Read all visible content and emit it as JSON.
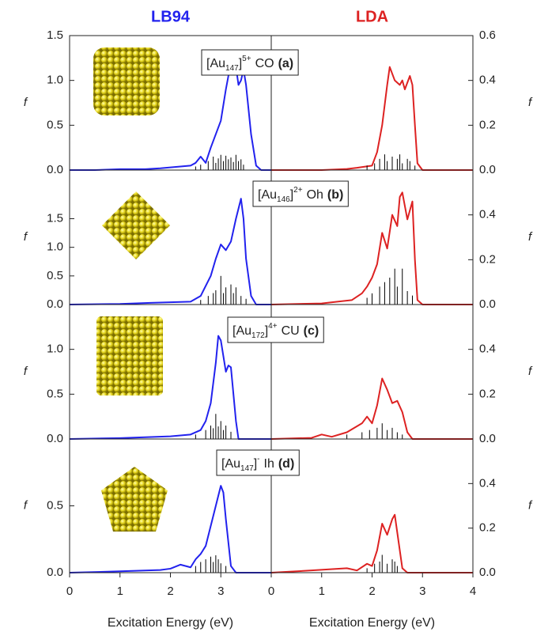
{
  "chart_data": [
    {
      "type": "line",
      "title": "LB94",
      "title_color": "#2222ee",
      "ylabel": "f",
      "xlim": [
        0,
        4
      ],
      "xticks": [],
      "ylim": [
        0,
        1.5
      ],
      "yticks": [
        {
          "value": 0,
          "label": "0.0"
        },
        0.5,
        {
          "value": 1,
          "label": "1.0"
        },
        1.5
      ],
      "annotation": {
        "prefix": "[Au",
        "sub": "147",
        "suffix": "]",
        "sup": "5+",
        "name": "CO",
        "tag": "(a)"
      },
      "series": [
        {
          "color": "#2222ee",
          "x": [
            0,
            0.5,
            1.0,
            1.5,
            1.8,
            2.0,
            2.2,
            2.4,
            2.5,
            2.6,
            2.7,
            2.8,
            2.9,
            3.0,
            3.1,
            3.2,
            3.3,
            3.35,
            3.4,
            3.45,
            3.5,
            3.6,
            3.7,
            3.8,
            4.0
          ],
          "values": [
            0,
            0,
            0.01,
            0.01,
            0.02,
            0.03,
            0.04,
            0.05,
            0.08,
            0.15,
            0.08,
            0.25,
            0.4,
            0.55,
            0.9,
            1.2,
            1.15,
            0.95,
            1.0,
            1.12,
            0.95,
            0.4,
            0.05,
            0,
            0
          ]
        },
        {
          "color": "#000000",
          "style": "stick",
          "x": [
            2.5,
            2.6,
            2.75,
            2.85,
            2.9,
            2.95,
            3.0,
            3.05,
            3.1,
            3.15,
            3.2,
            3.25,
            3.3,
            3.35,
            3.4,
            3.45
          ],
          "values": [
            0.04,
            0.06,
            0.1,
            0.15,
            0.08,
            0.13,
            0.17,
            0.1,
            0.16,
            0.12,
            0.14,
            0.09,
            0.17,
            0.1,
            0.12,
            0.06
          ]
        }
      ]
    },
    {
      "type": "line",
      "title": "LDA",
      "title_color": "#dd2222",
      "ylabel": "f",
      "xlim": [
        0,
        4
      ],
      "xticks": [],
      "ylim": [
        0,
        0.6
      ],
      "yticks": [
        {
          "value": 0,
          "label": "0.0"
        },
        0.2,
        0.4,
        0.6
      ],
      "series": [
        {
          "color": "#dd2222",
          "x": [
            0,
            1.0,
            1.5,
            1.7,
            2.0,
            2.1,
            2.2,
            2.3,
            2.35,
            2.45,
            2.55,
            2.6,
            2.65,
            2.75,
            2.8,
            2.85,
            2.9,
            3.0,
            4.0
          ],
          "values": [
            0,
            0,
            0.005,
            0.01,
            0.02,
            0.08,
            0.2,
            0.38,
            0.46,
            0.4,
            0.38,
            0.4,
            0.36,
            0.42,
            0.38,
            0.2,
            0.03,
            0,
            0
          ]
        },
        {
          "color": "#000000",
          "style": "stick",
          "x": [
            1.9,
            2.05,
            2.15,
            2.25,
            2.3,
            2.4,
            2.5,
            2.55,
            2.6,
            2.7,
            2.75,
            2.85
          ],
          "values": [
            0.02,
            0.03,
            0.05,
            0.07,
            0.04,
            0.06,
            0.05,
            0.07,
            0.03,
            0.05,
            0.04,
            0.02
          ]
        }
      ]
    },
    {
      "type": "line",
      "ylabel": "f",
      "xlim": [
        0,
        4
      ],
      "xticks": [],
      "ylim": [
        0,
        2.35
      ],
      "yticks": [
        {
          "value": 0,
          "label": "0.0"
        },
        0.5,
        {
          "value": 1,
          "label": "1.0"
        },
        1.5
      ],
      "annotation": {
        "prefix": "[Au",
        "sub": "146",
        "suffix": "]",
        "sup": "2+",
        "name": "Oh",
        "tag": "(b)"
      },
      "series": [
        {
          "color": "#2222ee",
          "x": [
            0,
            1.0,
            1.6,
            2.0,
            2.4,
            2.6,
            2.8,
            2.9,
            3.0,
            3.1,
            3.2,
            3.3,
            3.4,
            3.45,
            3.5,
            3.6,
            3.7,
            4.0
          ],
          "values": [
            0,
            0.01,
            0.03,
            0.04,
            0.05,
            0.15,
            0.5,
            0.8,
            1.05,
            0.95,
            1.1,
            1.5,
            1.85,
            1.5,
            0.8,
            0.15,
            0,
            0
          ]
        },
        {
          "color": "#000000",
          "style": "stick",
          "x": [
            2.6,
            2.75,
            2.85,
            2.9,
            3.0,
            3.05,
            3.1,
            3.2,
            3.25,
            3.3,
            3.4,
            3.5
          ],
          "values": [
            0.08,
            0.15,
            0.2,
            0.25,
            0.5,
            0.2,
            0.3,
            0.35,
            0.2,
            0.3,
            0.15,
            0.1
          ]
        }
      ]
    },
    {
      "type": "line",
      "ylabel": "f",
      "xlim": [
        0,
        4
      ],
      "xticks": [],
      "ylim": [
        0,
        0.6
      ],
      "yticks": [
        {
          "value": 0,
          "label": "0.0"
        },
        0.2,
        0.4
      ],
      "series": [
        {
          "color": "#dd2222",
          "x": [
            0,
            1.0,
            1.6,
            1.8,
            1.9,
            2.0,
            2.1,
            2.2,
            2.3,
            2.4,
            2.5,
            2.55,
            2.6,
            2.7,
            2.8,
            2.85,
            2.9,
            3.0,
            4.0
          ],
          "values": [
            0,
            0.005,
            0.02,
            0.05,
            0.08,
            0.12,
            0.18,
            0.32,
            0.25,
            0.4,
            0.35,
            0.48,
            0.5,
            0.38,
            0.46,
            0.2,
            0.02,
            0,
            0
          ]
        },
        {
          "color": "#000000",
          "style": "stick",
          "x": [
            1.9,
            2.0,
            2.15,
            2.25,
            2.35,
            2.45,
            2.5,
            2.6,
            2.7,
            2.8
          ],
          "values": [
            0.03,
            0.05,
            0.08,
            0.1,
            0.12,
            0.16,
            0.08,
            0.16,
            0.06,
            0.04
          ]
        }
      ]
    },
    {
      "type": "line",
      "ylabel": "f",
      "xlim": [
        0,
        4
      ],
      "xticks": [],
      "ylim": [
        0,
        1.5
      ],
      "yticks": [
        {
          "value": 0,
          "label": "0.0"
        },
        0.5,
        {
          "value": 1,
          "label": "1.0"
        }
      ],
      "annotation": {
        "prefix": "[Au",
        "sub": "172",
        "suffix": "]",
        "sup": "4+",
        "name": "CU",
        "tag": "(c)"
      },
      "series": [
        {
          "color": "#2222ee",
          "x": [
            0,
            1.0,
            2.0,
            2.4,
            2.6,
            2.7,
            2.8,
            2.9,
            2.95,
            3.0,
            3.1,
            3.15,
            3.2,
            3.3,
            3.35,
            4.0
          ],
          "values": [
            0,
            0.01,
            0.03,
            0.05,
            0.1,
            0.2,
            0.4,
            0.85,
            1.15,
            1.1,
            0.75,
            0.82,
            0.8,
            0.2,
            0,
            0
          ]
        },
        {
          "color": "#000000",
          "style": "stick",
          "x": [
            2.5,
            2.7,
            2.8,
            2.85,
            2.9,
            2.95,
            3.0,
            3.05,
            3.1,
            3.2
          ],
          "values": [
            0.05,
            0.1,
            0.15,
            0.12,
            0.28,
            0.14,
            0.2,
            0.1,
            0.15,
            0.08
          ]
        }
      ]
    },
    {
      "type": "line",
      "ylabel": "f",
      "xlim": [
        0,
        4
      ],
      "xticks": [],
      "ylim": [
        0,
        0.6
      ],
      "yticks": [
        {
          "value": 0,
          "label": "0.0"
        },
        0.2,
        0.4
      ],
      "series": [
        {
          "color": "#dd2222",
          "x": [
            0,
            0.8,
            1.0,
            1.2,
            1.5,
            1.8,
            1.9,
            2.0,
            2.1,
            2.2,
            2.3,
            2.4,
            2.5,
            2.6,
            2.7,
            2.8,
            4.0
          ],
          "values": [
            0,
            0.005,
            0.02,
            0.01,
            0.03,
            0.07,
            0.1,
            0.07,
            0.15,
            0.27,
            0.22,
            0.16,
            0.17,
            0.12,
            0.03,
            0,
            0
          ]
        },
        {
          "color": "#000000",
          "style": "stick",
          "x": [
            1.5,
            1.8,
            1.95,
            2.1,
            2.2,
            2.3,
            2.4,
            2.5,
            2.6
          ],
          "values": [
            0.02,
            0.03,
            0.04,
            0.05,
            0.07,
            0.04,
            0.05,
            0.03,
            0.02
          ]
        }
      ]
    },
    {
      "type": "line",
      "xlabel": "Excitation Energy (eV)",
      "ylabel": "f",
      "xlim": [
        0,
        4
      ],
      "xticks": [
        0,
        1,
        2,
        3
      ],
      "ylim": [
        0,
        1.0
      ],
      "yticks": [
        {
          "value": 0,
          "label": "0.0"
        },
        0.5
      ],
      "annotation": {
        "prefix": "[Au",
        "sub": "147",
        "suffix": "]",
        "sup": "-",
        "name": "Ih",
        "tag": "(d)"
      },
      "series": [
        {
          "color": "#2222ee",
          "x": [
            0,
            1.0,
            1.8,
            2.0,
            2.2,
            2.4,
            2.5,
            2.6,
            2.7,
            2.8,
            2.9,
            3.0,
            3.05,
            3.1,
            3.2,
            3.3,
            4.0
          ],
          "values": [
            0,
            0.01,
            0.02,
            0.03,
            0.06,
            0.04,
            0.1,
            0.14,
            0.2,
            0.35,
            0.5,
            0.65,
            0.6,
            0.4,
            0.05,
            0,
            0
          ]
        },
        {
          "color": "#000000",
          "style": "stick",
          "x": [
            2.5,
            2.6,
            2.7,
            2.8,
            2.85,
            2.9,
            2.95,
            3.0,
            3.1
          ],
          "values": [
            0.05,
            0.08,
            0.1,
            0.12,
            0.08,
            0.13,
            0.1,
            0.07,
            0.05
          ]
        }
      ]
    },
    {
      "type": "line",
      "xlabel": "Excitation Energy (eV)",
      "ylabel": "f",
      "xlim": [
        0,
        4
      ],
      "xticks": [
        0,
        1,
        2,
        3,
        4
      ],
      "ylim": [
        0,
        0.6
      ],
      "yticks": [
        {
          "value": 0,
          "label": "0.0"
        },
        0.2,
        0.4
      ],
      "series": [
        {
          "color": "#dd2222",
          "x": [
            0,
            0.8,
            1.5,
            1.7,
            1.9,
            2.0,
            2.1,
            2.2,
            2.3,
            2.4,
            2.45,
            2.5,
            2.6,
            2.7,
            4.0
          ],
          "values": [
            0,
            0.01,
            0.02,
            0.01,
            0.04,
            0.03,
            0.1,
            0.22,
            0.17,
            0.24,
            0.26,
            0.18,
            0.02,
            0,
            0
          ]
        },
        {
          "color": "#000000",
          "style": "stick",
          "x": [
            1.9,
            2.05,
            2.15,
            2.2,
            2.3,
            2.4,
            2.45,
            2.5
          ],
          "values": [
            0.02,
            0.04,
            0.05,
            0.08,
            0.04,
            0.06,
            0.05,
            0.03
          ]
        }
      ]
    }
  ]
}
